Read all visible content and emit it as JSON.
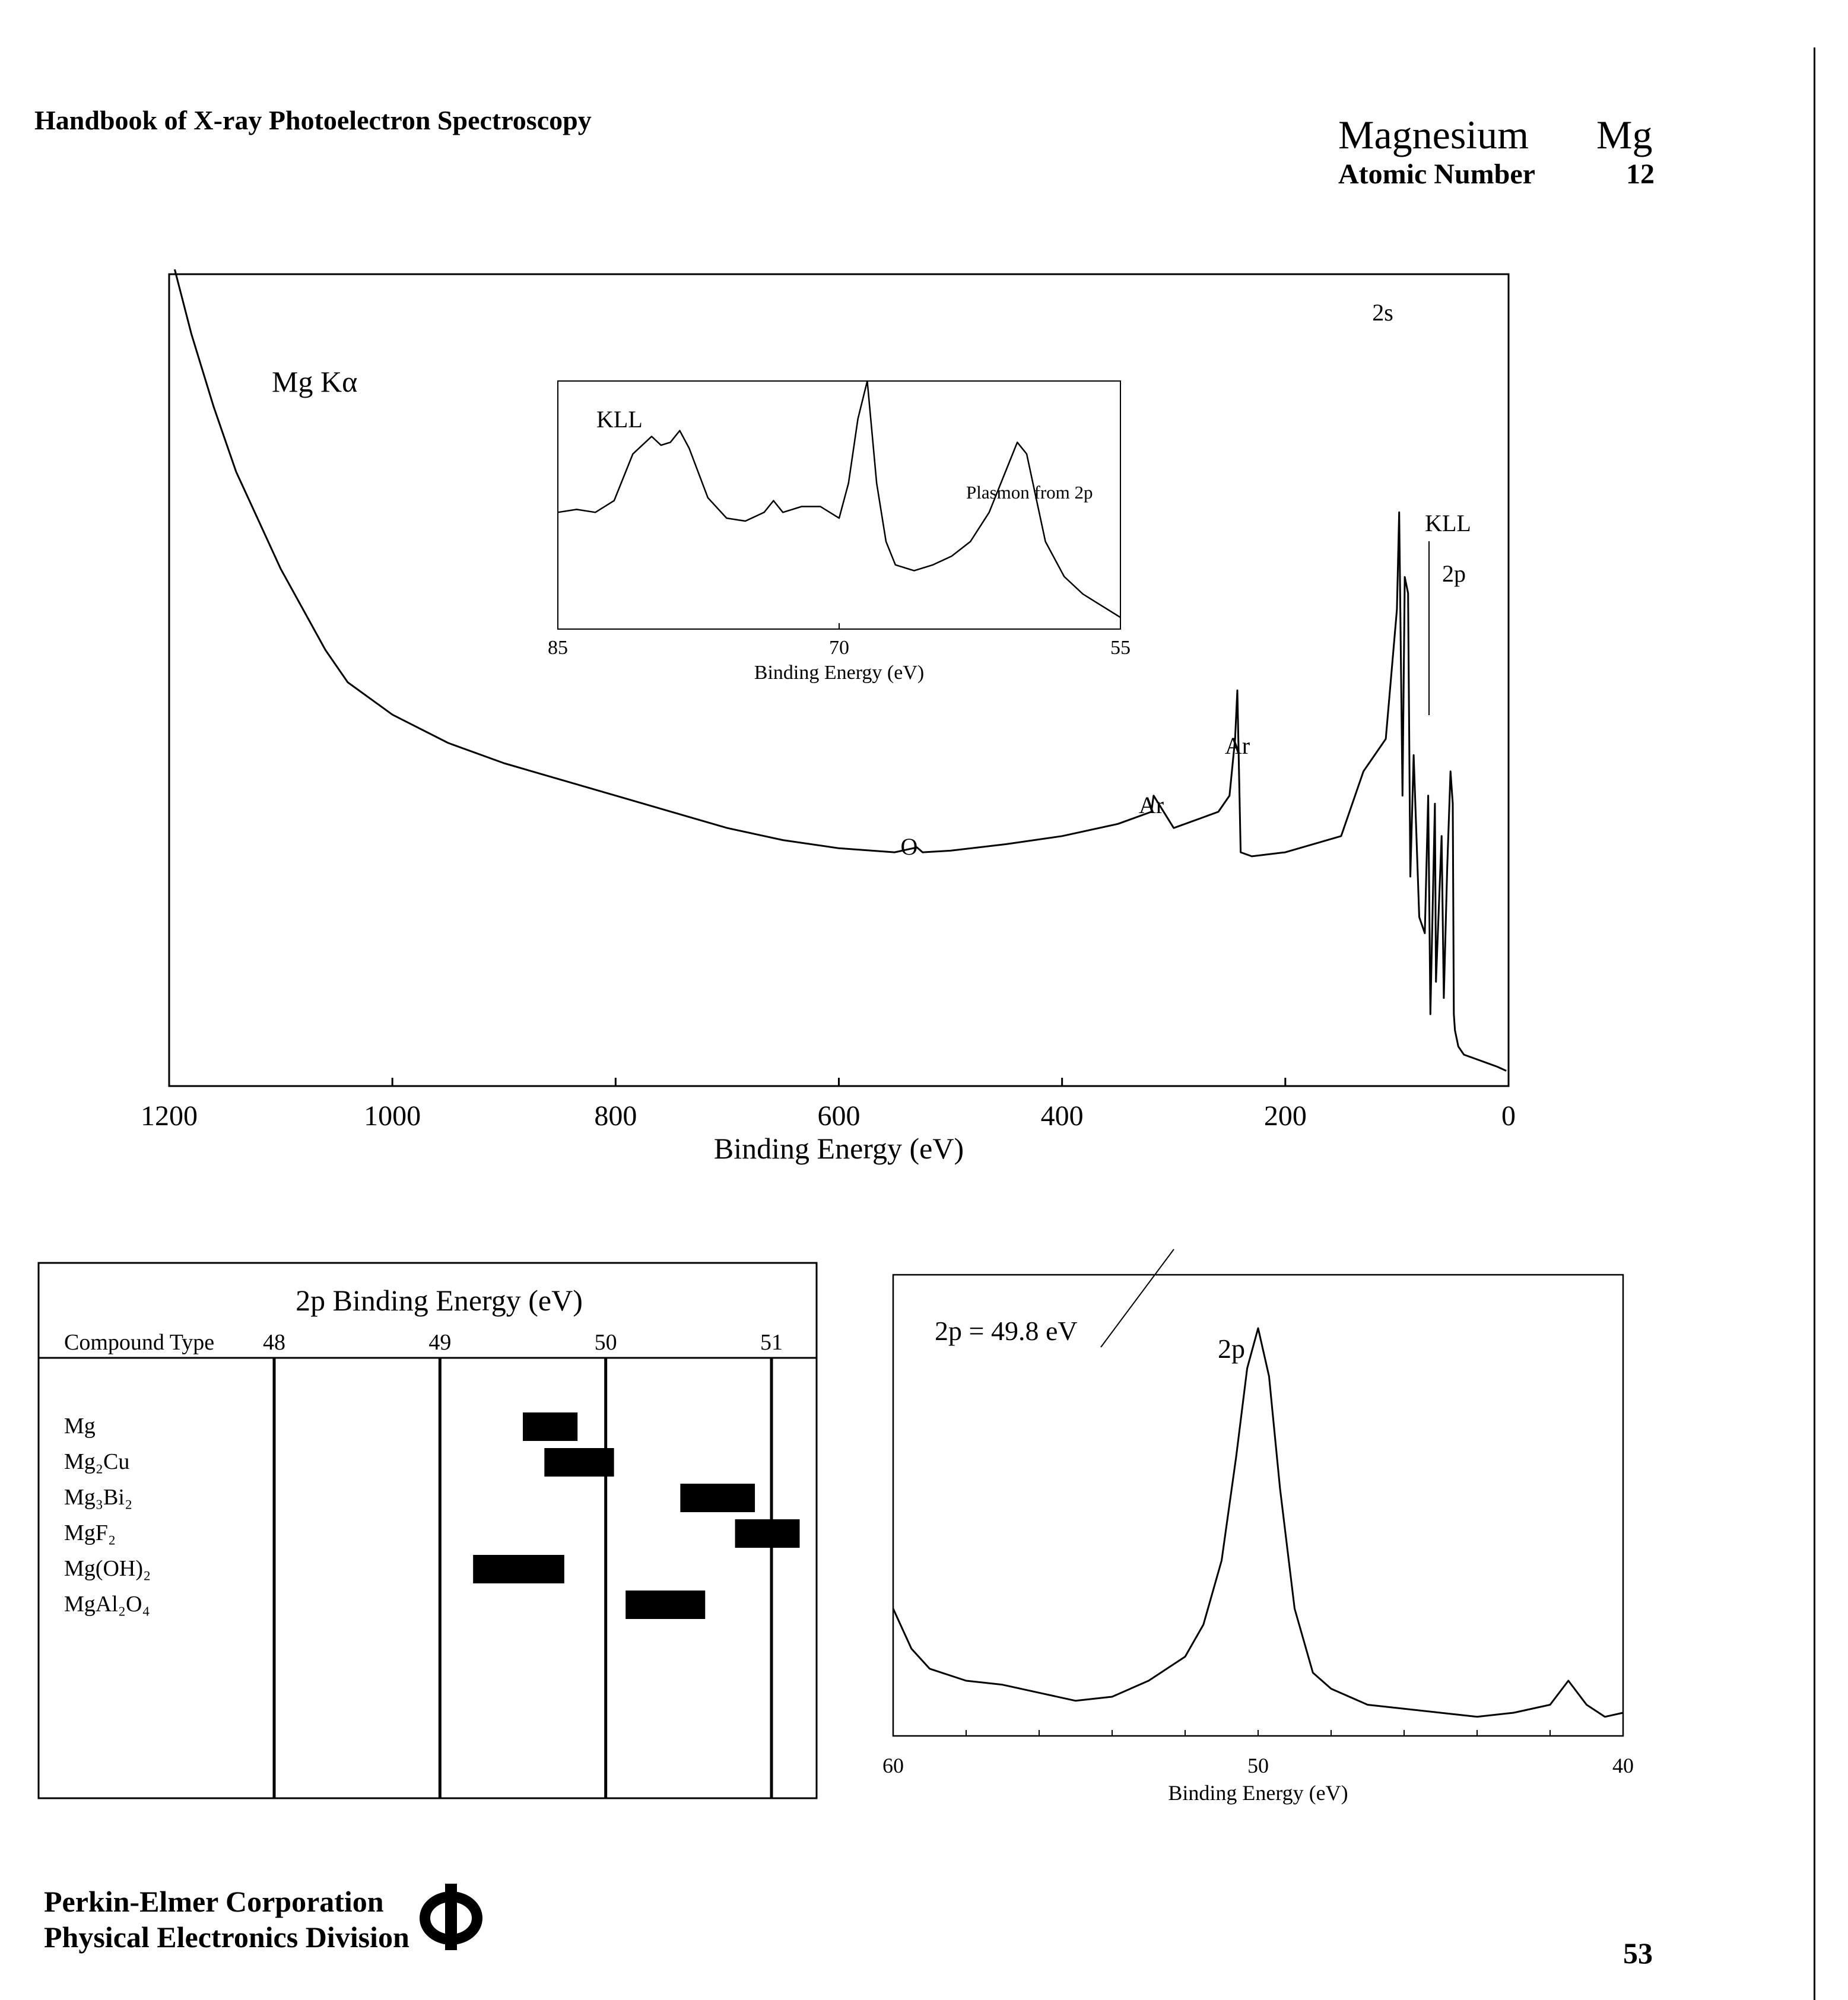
{
  "header": {
    "title": "Handbook of X-ray Photoelectron Spectroscopy",
    "element_name": "Magnesium",
    "element_symbol": "Mg",
    "atomic_number_label": "Atomic Number",
    "atomic_number": "12"
  },
  "footer": {
    "company": "Perkin-Elmer Corporation",
    "division": "Physical Electronics Division",
    "page_number": "53"
  },
  "chart_data": [
    {
      "id": "survey",
      "type": "line",
      "xlabel": "Binding Energy (eV)",
      "x_ticks": [
        "1200",
        "1000",
        "800",
        "600",
        "400",
        "200",
        "0"
      ],
      "xlim": [
        1200,
        0
      ],
      "source_label": "Mg Kα",
      "annotations": [
        "2s",
        "KLL",
        "2p",
        "Ar",
        "Ar",
        "O"
      ],
      "series": [
        {
          "x": [
            1195,
            1180,
            1160,
            1140,
            1120,
            1100,
            1080,
            1060,
            1040,
            1000,
            950,
            900,
            850,
            800,
            750,
            700,
            650,
            600,
            550,
            530,
            525,
            500,
            450,
            400,
            350,
            320,
            318,
            300,
            260,
            250,
            245,
            243,
            240,
            230,
            200,
            150,
            130,
            110,
            100,
            98,
            95,
            93,
            90,
            88,
            85,
            80,
            75,
            72,
            70,
            66,
            65,
            60,
            58,
            55,
            52,
            50,
            49,
            48,
            45,
            40,
            30,
            20,
            10,
            2
          ],
          "y": [
            100,
            92,
            83,
            75,
            69,
            63,
            58,
            53,
            49,
            45,
            41.5,
            39,
            37,
            35,
            33,
            31,
            29.5,
            28.5,
            28,
            28.6,
            28,
            28.2,
            29,
            30,
            31.5,
            33,
            35,
            31,
            33,
            35,
            42,
            48,
            28,
            27.5,
            28,
            30,
            38,
            42,
            58,
            70,
            35,
            62,
            60,
            25,
            40,
            20,
            18,
            35,
            8,
            34,
            12,
            30,
            10,
            26,
            38,
            34,
            8,
            6,
            4,
            3,
            2.5,
            2,
            1.5,
            1
          ]
        }
      ]
    },
    {
      "id": "inset_kll",
      "type": "line",
      "xlabel": "Binding Energy (eV)",
      "x_ticks": [
        "85",
        "70",
        "55"
      ],
      "xlim": [
        85,
        55
      ],
      "annotations": [
        "KLL",
        "Plasmon from 2p"
      ],
      "series": [
        {
          "x": [
            85,
            84,
            83,
            82,
            81,
            80,
            79.5,
            79,
            78.5,
            78,
            77,
            76,
            75,
            74,
            73.5,
            73,
            72.5,
            72,
            71,
            70,
            69.5,
            69,
            68.5,
            68,
            67.5,
            67,
            66,
            65,
            64,
            63,
            62,
            61,
            60.5,
            60,
            59.5,
            59,
            58,
            57,
            56,
            55
          ],
          "y": [
            40,
            41,
            40,
            44,
            60,
            66,
            63,
            64,
            68,
            62,
            45,
            38,
            37,
            40,
            44,
            40,
            41,
            42,
            42,
            38,
            50,
            72,
            85,
            50,
            30,
            22,
            20,
            22,
            25,
            30,
            40,
            56,
            64,
            60,
            45,
            30,
            18,
            12,
            8,
            4
          ]
        }
      ]
    },
    {
      "id": "bar_table",
      "type": "bar",
      "title": "2p Binding Energy (eV)",
      "row_header": "Compound Type",
      "x_ticks": [
        "48",
        "49",
        "50",
        "51"
      ],
      "xlim": [
        47.0,
        51.27
      ],
      "categories": [
        "Mg",
        "Mg₂Cu",
        "Mg₃Bi₂",
        "MgF₂",
        "Mg(OH)₂",
        "MgAl₂O₄"
      ],
      "ranges": [
        [
          49.5,
          49.83
        ],
        [
          49.63,
          50.05
        ],
        [
          50.45,
          50.9
        ],
        [
          50.78,
          51.17
        ],
        [
          49.2,
          49.75
        ],
        [
          50.12,
          50.6
        ]
      ]
    },
    {
      "id": "mg2p",
      "type": "line",
      "xlabel": "Binding Energy (eV)",
      "x_ticks": [
        "60",
        "50",
        "40"
      ],
      "xlim": [
        60,
        40
      ],
      "annotations": [
        "2p = 49.8 eV",
        "2p"
      ],
      "series": [
        {
          "x": [
            60,
            59.5,
            59,
            58,
            57,
            56,
            55,
            54,
            53,
            52,
            51.5,
            51,
            50.6,
            50.3,
            50,
            49.7,
            49.4,
            49,
            48.5,
            48,
            47,
            46,
            45,
            44,
            43,
            42,
            41.5,
            41,
            40.5,
            40
          ],
          "y": [
            30,
            20,
            15,
            12,
            11,
            9,
            7,
            8,
            12,
            18,
            26,
            42,
            68,
            90,
            100,
            88,
            60,
            30,
            14,
            10,
            6,
            5,
            4,
            3,
            4,
            6,
            12,
            6,
            3,
            4
          ]
        }
      ]
    }
  ]
}
